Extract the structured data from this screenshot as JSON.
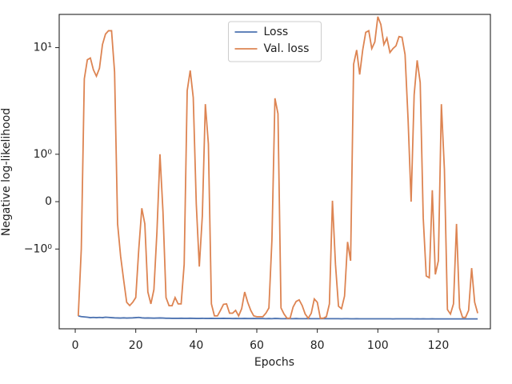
{
  "chart_data": {
    "type": "line",
    "xlabel": "Epochs",
    "ylabel": "Negative log-likelihood",
    "yscale": "symlog",
    "linthresh": 1,
    "linscale": 0.4,
    "xlim": [
      -5.3,
      137.2
    ],
    "ylim": [
      -5.6,
      20.5
    ],
    "xticks": [
      0,
      20,
      40,
      60,
      80,
      100,
      120
    ],
    "yticks": [
      {
        "value": -1,
        "label": "−10⁰"
      },
      0,
      {
        "value": 1,
        "label": "10⁰"
      },
      {
        "value": 10,
        "label": "10¹"
      }
    ],
    "legend": "upper center",
    "x": [
      1,
      2,
      3,
      4,
      5,
      6,
      7,
      8,
      9,
      10,
      11,
      12,
      13,
      14,
      15,
      16,
      17,
      18,
      19,
      20,
      21,
      22,
      23,
      24,
      25,
      26,
      27,
      28,
      29,
      30,
      31,
      32,
      33,
      34,
      35,
      36,
      37,
      38,
      39,
      40,
      41,
      42,
      43,
      44,
      45,
      46,
      47,
      48,
      49,
      50,
      51,
      52,
      53,
      54,
      55,
      56,
      57,
      58,
      59,
      60,
      61,
      62,
      63,
      64,
      65,
      66,
      67,
      68,
      69,
      70,
      71,
      72,
      73,
      74,
      75,
      76,
      77,
      78,
      79,
      80,
      81,
      82,
      83,
      84,
      85,
      86,
      87,
      88,
      89,
      90,
      91,
      92,
      93,
      94,
      95,
      96,
      97,
      98,
      99,
      100,
      101,
      102,
      103,
      104,
      105,
      106,
      107,
      108,
      109,
      110,
      111,
      112,
      113,
      114,
      115,
      116,
      117,
      118,
      119,
      120,
      121,
      122,
      123,
      124,
      125,
      126,
      127,
      128,
      129,
      130,
      131,
      132,
      133
    ],
    "series": [
      {
        "name": "Loss",
        "color": "#4c72b0",
        "values": [
          -4.24,
          -4.3,
          -4.33,
          -4.36,
          -4.4,
          -4.38,
          -4.4,
          -4.38,
          -4.4,
          -4.36,
          -4.38,
          -4.4,
          -4.42,
          -4.43,
          -4.44,
          -4.42,
          -4.44,
          -4.43,
          -4.42,
          -4.4,
          -4.38,
          -4.42,
          -4.44,
          -4.43,
          -4.44,
          -4.45,
          -4.44,
          -4.43,
          -4.44,
          -4.46,
          -4.46,
          -4.47,
          -4.47,
          -4.47,
          -4.46,
          -4.47,
          -4.47,
          -4.46,
          -4.47,
          -4.48,
          -4.48,
          -4.47,
          -4.48,
          -4.48,
          -4.47,
          -4.48,
          -4.48,
          -4.48,
          -4.47,
          -4.48,
          -4.48,
          -4.49,
          -4.48,
          -4.49,
          -4.49,
          -4.48,
          -4.49,
          -4.49,
          -4.48,
          -4.49,
          -4.49,
          -4.49,
          -4.5,
          -4.49,
          -4.5,
          -4.48,
          -4.49,
          -4.5,
          -4.5,
          -4.49,
          -4.5,
          -4.5,
          -4.49,
          -4.5,
          -4.5,
          -4.5,
          -4.49,
          -4.5,
          -4.5,
          -4.5,
          -4.5,
          -4.49,
          -4.5,
          -4.5,
          -4.5,
          -4.5,
          -4.5,
          -4.51,
          -4.5,
          -4.5,
          -4.51,
          -4.51,
          -4.5,
          -4.51,
          -4.51,
          -4.51,
          -4.51,
          -4.51,
          -4.51,
          -4.51,
          -4.51,
          -4.51,
          -4.51,
          -4.51,
          -4.52,
          -4.51,
          -4.51,
          -4.51,
          -4.51,
          -4.51,
          -4.51,
          -4.52,
          -4.51,
          -4.52,
          -4.51,
          -4.52,
          -4.52,
          -4.51,
          -4.52,
          -4.52,
          -4.52,
          -4.52,
          -4.52,
          -4.52,
          -4.52,
          -4.52,
          -4.52,
          -4.52,
          -4.52,
          -4.52,
          -4.52,
          -4.52,
          -4.52
        ]
      },
      {
        "name": "Val. loss",
        "color": "#dd8452",
        "values": [
          -4.24,
          -1.0,
          5.1,
          7.7,
          8.0,
          6.2,
          5.4,
          6.4,
          10.7,
          13.4,
          14.4,
          14.4,
          5.9,
          -0.47,
          -1.17,
          -1.95,
          -3.16,
          -3.39,
          -3.16,
          -2.85,
          -1.0,
          -0.14,
          -0.47,
          -2.53,
          -3.27,
          -2.4,
          -0.64,
          1.0,
          -0.22,
          -2.85,
          -3.4,
          -3.4,
          -2.85,
          -3.27,
          -3.27,
          -1.39,
          3.95,
          6.1,
          3.4,
          -0.05,
          -1.46,
          -0.3,
          2.95,
          1.25,
          -3.27,
          -4.24,
          -4.24,
          -3.76,
          -3.3,
          -3.27,
          -4.0,
          -4.0,
          -3.76,
          -4.24,
          -3.63,
          -2.53,
          -3.16,
          -3.76,
          -4.24,
          -4.31,
          -4.31,
          -4.31,
          -4.0,
          -3.57,
          -0.81,
          3.35,
          2.4,
          -3.57,
          -4.07,
          -4.46,
          -4.46,
          -3.5,
          -3.1,
          -3.0,
          -3.39,
          -4.07,
          -4.46,
          -4.0,
          -2.94,
          -3.16,
          -4.46,
          -4.46,
          -4.31,
          -3.27,
          0.02,
          -1.39,
          -3.44,
          -3.63,
          -2.76,
          -0.85,
          -1.29,
          7.0,
          9.5,
          5.6,
          9.5,
          13.9,
          14.4,
          9.8,
          11.3,
          19.5,
          16.5,
          10.7,
          12.3,
          9.0,
          9.8,
          10.4,
          12.7,
          12.5,
          8.6,
          2.1,
          0,
          3.6,
          7.6,
          4.7,
          -0.34,
          -1.79,
          -1.86,
          0.24,
          -1.73,
          -1.29,
          2.95,
          0.68,
          -3.7,
          -4.07,
          -3.27,
          -0.47,
          -3.57,
          -4.38,
          -4.38,
          -3.76,
          -1.51,
          -3.16,
          -4.0
        ]
      }
    ]
  }
}
